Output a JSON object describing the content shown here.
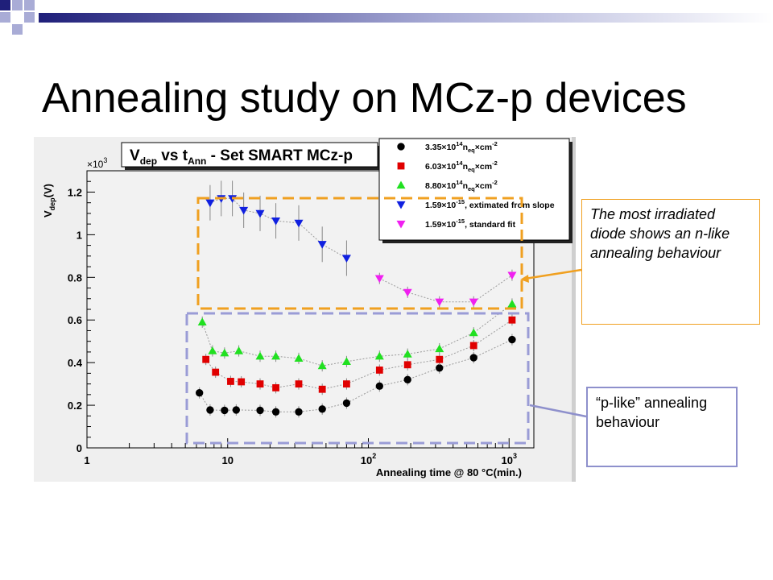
{
  "slide": {
    "title": "Annealing study on MCz-p devices"
  },
  "colors": {
    "title_deco_dark": "#1f1f7a",
    "title_deco_light": "#a9acd6",
    "orange_box": "#f0a020",
    "purple_box": "#9a9cd6"
  },
  "callouts": {
    "nlike_text": "The most irradiated diode shows an n-like annealing behaviour",
    "plike_text": "“p-like” annealing behaviour"
  },
  "chart_data": {
    "type": "scatter",
    "title_main": "V",
    "title_main_sub": "dep",
    "title_mid": " vs t",
    "title_mid_sub": "Ann",
    "title_end": " - Set SMART MCz-p",
    "ylabel": "V",
    "ylabel_sub": "dep",
    "ylabel_unit": "(V)",
    "ymultiplier_prefix": "×10",
    "ymultiplier_exp": "3",
    "xlabel": "Annealing time @ 80 °C(min.)",
    "x_scale": "log",
    "xlim": [
      1,
      1500
    ],
    "ylim": [
      0,
      1.3
    ],
    "y_unit_multiplier": 1000,
    "y_ticks": [
      0,
      0.2,
      0.4,
      0.6,
      0.8,
      1,
      1.2
    ],
    "y_tick_labels": [
      "0",
      "0.2",
      "0.4",
      "0.6",
      "0.8",
      "1",
      "1.2"
    ],
    "x_ticks": [
      1,
      10,
      100,
      1000
    ],
    "x_tick_labels": [
      {
        "base": "1",
        "exp": ""
      },
      {
        "base": "10",
        "exp": ""
      },
      {
        "base": "10",
        "exp": "2"
      },
      {
        "base": "10",
        "exp": "3"
      }
    ],
    "legend_placement": "top-right",
    "series": [
      {
        "legend": "3.35×10¹⁴nₑq×cm⁻²",
        "legend_html": {
          "a": "3.35",
          "b": "×10",
          "sup1": "14",
          "c": "n",
          "sub": "eq",
          "d": "×cm",
          "sup2": "-2",
          "e": ""
        },
        "marker": "circle",
        "color": "#000000",
        "points": [
          {
            "x": 6.3,
            "y": 0.258
          },
          {
            "x": 7.5,
            "y": 0.178
          },
          {
            "x": 9.5,
            "y": 0.176
          },
          {
            "x": 11.5,
            "y": 0.178
          },
          {
            "x": 17,
            "y": 0.176
          },
          {
            "x": 22,
            "y": 0.169
          },
          {
            "x": 32,
            "y": 0.169
          },
          {
            "x": 47,
            "y": 0.182
          },
          {
            "x": 70,
            "y": 0.21
          },
          {
            "x": 120,
            "y": 0.29
          },
          {
            "x": 190,
            "y": 0.32
          },
          {
            "x": 320,
            "y": 0.375
          },
          {
            "x": 560,
            "y": 0.423
          },
          {
            "x": 1050,
            "y": 0.508
          }
        ]
      },
      {
        "legend": "6.03×10¹⁴nₑq×cm⁻²",
        "legend_html": {
          "a": "6.03",
          "b": "×10",
          "sup1": "14",
          "c": "n",
          "sub": "eq",
          "d": "×cm",
          "sup2": "-2",
          "e": ""
        },
        "marker": "square",
        "color": "#e00000",
        "points": [
          {
            "x": 7,
            "y": 0.415
          },
          {
            "x": 8.2,
            "y": 0.355
          },
          {
            "x": 10.5,
            "y": 0.312
          },
          {
            "x": 12.5,
            "y": 0.31
          },
          {
            "x": 17,
            "y": 0.3
          },
          {
            "x": 22,
            "y": 0.282
          },
          {
            "x": 32,
            "y": 0.3
          },
          {
            "x": 47,
            "y": 0.275
          },
          {
            "x": 70,
            "y": 0.3
          },
          {
            "x": 120,
            "y": 0.365
          },
          {
            "x": 190,
            "y": 0.39
          },
          {
            "x": 320,
            "y": 0.415
          },
          {
            "x": 560,
            "y": 0.48
          },
          {
            "x": 1050,
            "y": 0.6
          }
        ]
      },
      {
        "legend": "8.80×10¹⁴nₑq×cm⁻²",
        "legend_html": {
          "a": "8.80",
          "b": "×10",
          "sup1": "14",
          "c": "n",
          "sub": "eq",
          "d": "×cm",
          "sup2": "-2",
          "e": ""
        },
        "marker": "triangle-up",
        "color": "#20e020",
        "points": [
          {
            "x": 6.6,
            "y": 0.59
          },
          {
            "x": 7.8,
            "y": 0.455
          },
          {
            "x": 9.5,
            "y": 0.445
          },
          {
            "x": 12,
            "y": 0.455
          },
          {
            "x": 17,
            "y": 0.43
          },
          {
            "x": 22,
            "y": 0.43
          },
          {
            "x": 32,
            "y": 0.42
          },
          {
            "x": 47,
            "y": 0.385
          },
          {
            "x": 70,
            "y": 0.405
          },
          {
            "x": 120,
            "y": 0.43
          },
          {
            "x": 190,
            "y": 0.44
          },
          {
            "x": 320,
            "y": 0.465
          },
          {
            "x": 560,
            "y": 0.54
          },
          {
            "x": 1050,
            "y": 0.675
          }
        ]
      },
      {
        "legend": "1.59×10⁻¹⁵, extimated from slope",
        "legend_html": {
          "a": "1.59",
          "b": "×10",
          "sup1": "-15",
          "c": ", extimated from slope",
          "sub": "",
          "d": "",
          "sup2": "",
          "e": ""
        },
        "marker": "triangle-down",
        "color": "#1020e0",
        "points": [
          {
            "x": 7.5,
            "y": 1.15
          },
          {
            "x": 9,
            "y": 1.17
          },
          {
            "x": 10.8,
            "y": 1.17
          },
          {
            "x": 13,
            "y": 1.115
          },
          {
            "x": 17,
            "y": 1.1
          },
          {
            "x": 22,
            "y": 1.065
          },
          {
            "x": 32,
            "y": 1.055
          },
          {
            "x": 47,
            "y": 0.955
          },
          {
            "x": 70,
            "y": 0.89
          }
        ]
      },
      {
        "legend": "1.59×10⁻¹⁵, standard fit",
        "legend_html": {
          "a": "1.59",
          "b": "×10",
          "sup1": "-15",
          "c": ", standard fit",
          "sub": "",
          "d": "",
          "sup2": "",
          "e": ""
        },
        "marker": "triangle-down",
        "color": "#f020f0",
        "points": [
          {
            "x": 120,
            "y": 0.795
          },
          {
            "x": 190,
            "y": 0.73
          },
          {
            "x": 320,
            "y": 0.685
          },
          {
            "x": 560,
            "y": 0.685
          },
          {
            "x": 1050,
            "y": 0.81
          }
        ]
      }
    ]
  }
}
